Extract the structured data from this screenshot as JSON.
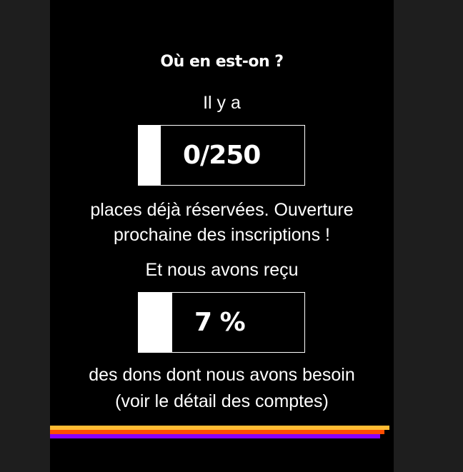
{
  "title": "Où en est-on ?",
  "intro": "Il y a",
  "places": {
    "value": "0/250",
    "progress_percent": 0
  },
  "places_text_line1": "places déjà réservées. Ouverture",
  "places_text_line2": "prochaine des inscriptions !",
  "donations_intro": "Et nous avons reçu",
  "donations": {
    "value": "7 %",
    "progress_percent": 7
  },
  "donations_text_line1": "des dons dont nous avons besoin",
  "donations_text_line2": "(voir le détail des comptes)",
  "colors": {
    "stripe1": "#ffbb33",
    "stripe2": "#ff4d00",
    "stripe3": "#8800ff"
  }
}
